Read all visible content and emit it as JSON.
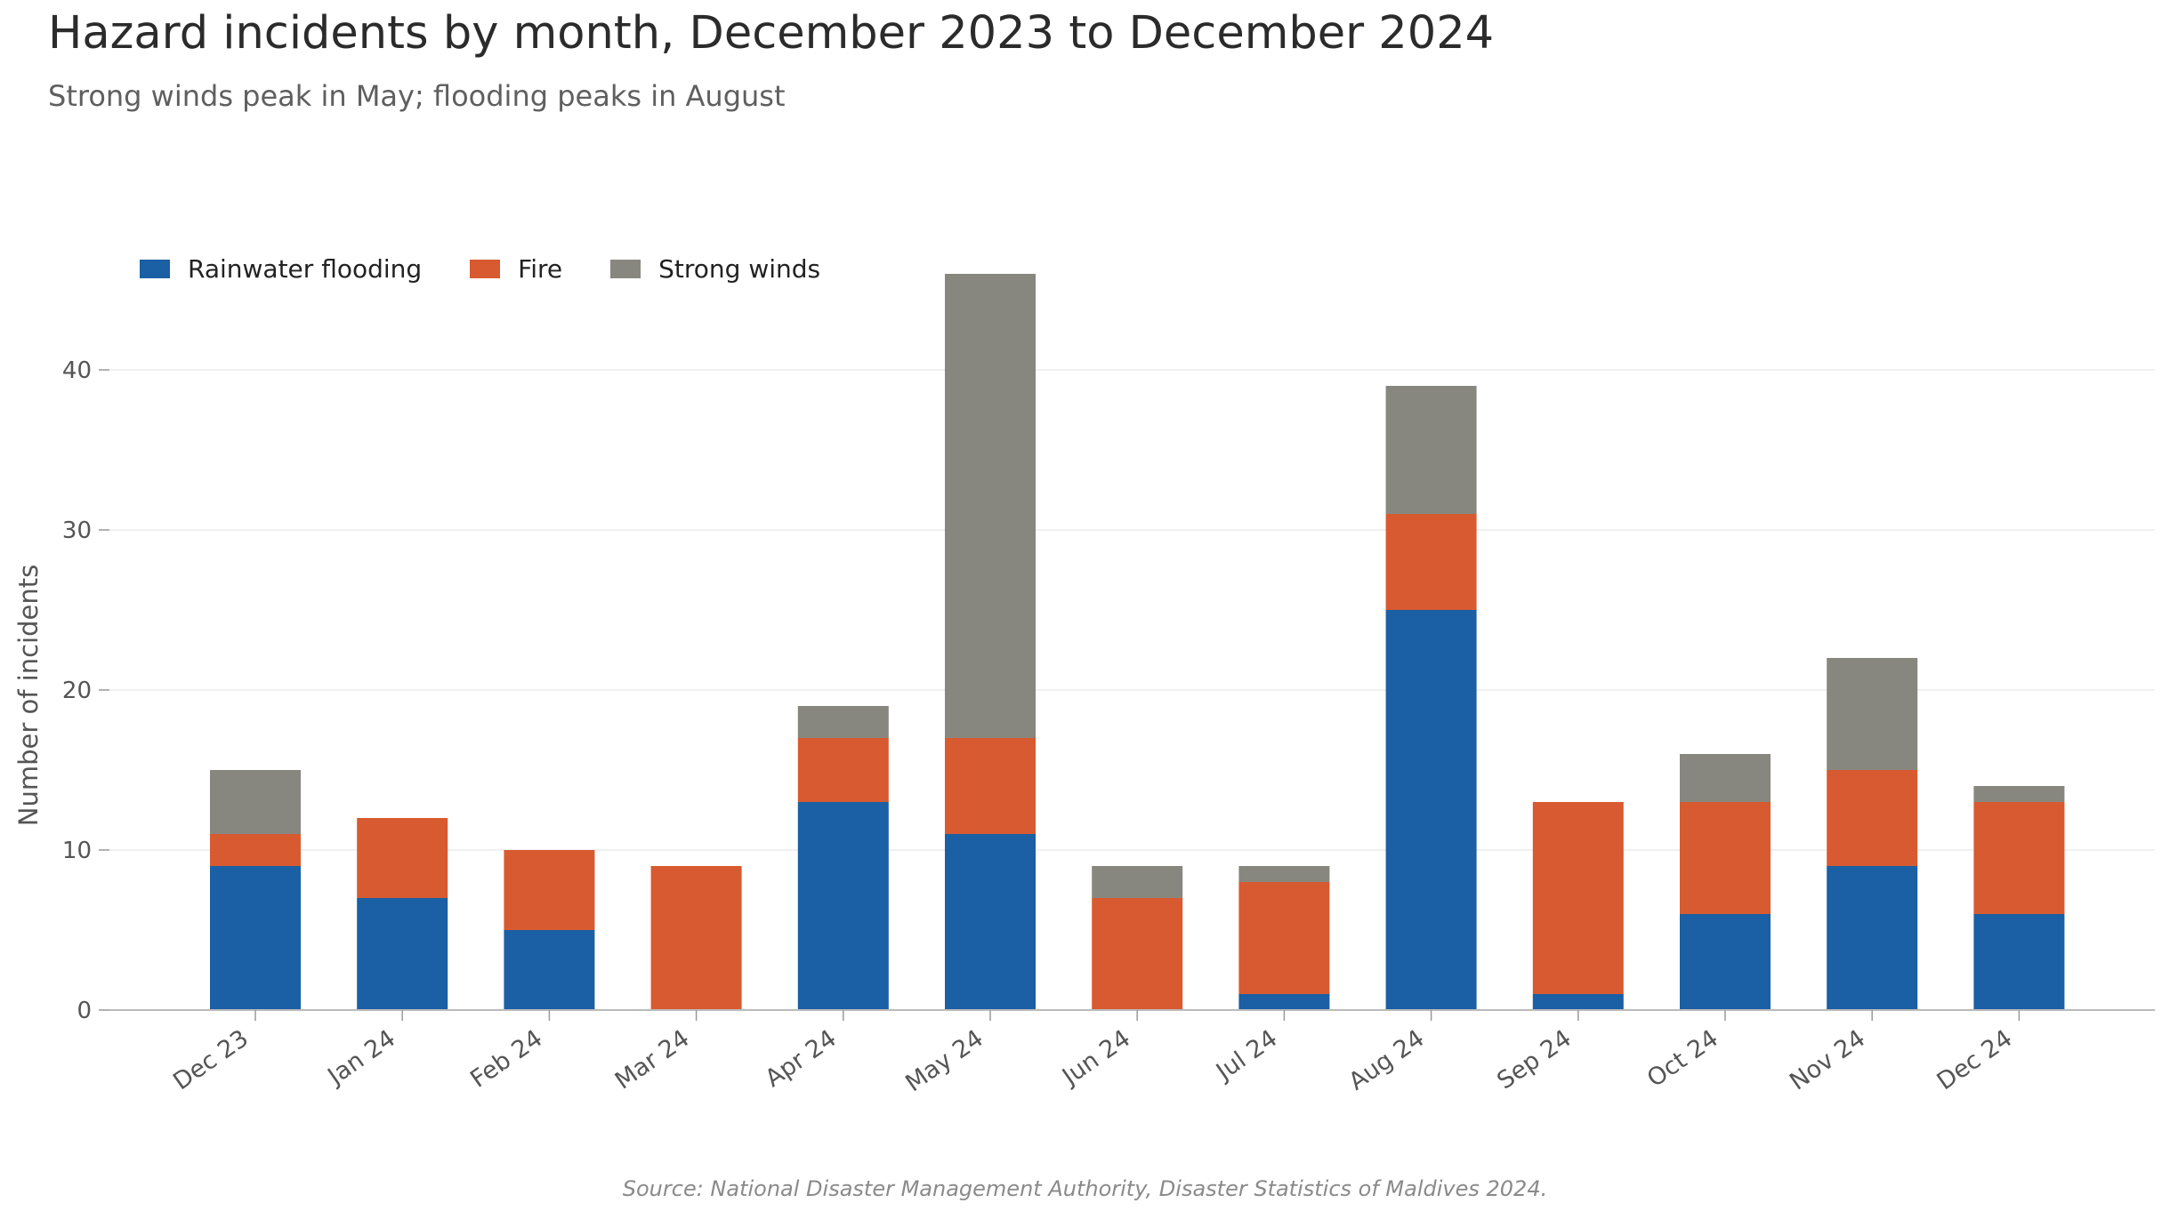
{
  "title": "Hazard incidents by month, December 2023 to December 2024",
  "subtitle": "Strong winds peak in May; flooding peaks in August",
  "source": "Source: National Disaster Management Authority, Disaster Statistics of Maldives 2024.",
  "chart_data": {
    "type": "bar",
    "stacked": true,
    "categories": [
      "Dec 23",
      "Jan 24",
      "Feb 24",
      "Mar 24",
      "Apr 24",
      "May 24",
      "Jun 24",
      "Jul 24",
      "Aug 24",
      "Sep 24",
      "Oct 24",
      "Nov 24",
      "Dec 24"
    ],
    "series": [
      {
        "name": "Rainwater flooding",
        "color": "#1b5fa5",
        "values": [
          9,
          7,
          5,
          0,
          13,
          11,
          0,
          1,
          25,
          1,
          6,
          9,
          6
        ]
      },
      {
        "name": "Fire",
        "color": "#d85a30",
        "values": [
          2,
          5,
          5,
          9,
          4,
          6,
          7,
          7,
          6,
          12,
          7,
          6,
          7
        ]
      },
      {
        "name": "Strong winds",
        "color": "#87877f",
        "values": [
          4,
          0,
          0,
          0,
          2,
          29,
          2,
          1,
          8,
          0,
          3,
          7,
          1
        ]
      }
    ],
    "ylabel": "Number of incidents",
    "xlabel": "",
    "ylim": [
      0,
      46
    ],
    "yticks": [
      0,
      10,
      20,
      30,
      40
    ],
    "grid": true,
    "legend_position": "top-left"
  }
}
